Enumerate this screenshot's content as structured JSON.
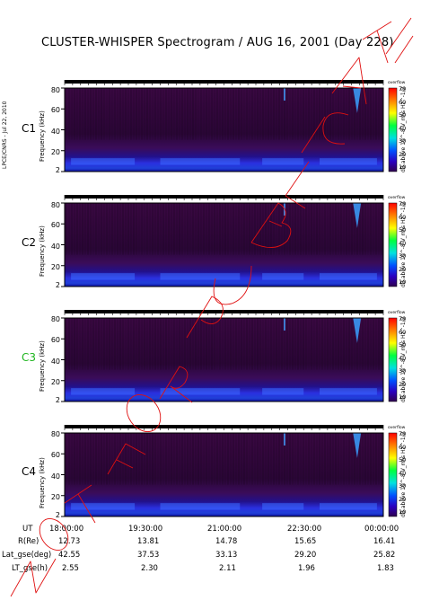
{
  "title": "CLUSTER-WHISPER Spectrogram / AUG 16, 2001 (Day 228)",
  "credit": "LPCE/CNRS - Jul 22, 2010",
  "chart_data": [
    {
      "type": "heatmap",
      "spacecraft": "C1",
      "label_color": "#000000",
      "ylabel": "Frequency (kHz)",
      "yticks": [
        "80",
        "60",
        "40",
        "20",
        "2"
      ],
      "colorbar": {
        "label": "dB above 10^-8 V_rms Hz^-1/2",
        "ticks": [
          "70",
          "60",
          "50",
          "40",
          "30",
          "20",
          "10"
        ],
        "top": "overflow"
      }
    },
    {
      "type": "heatmap",
      "spacecraft": "C2",
      "label_color": "#000000",
      "ylabel": "Frequency (kHz)",
      "yticks": [
        "80",
        "60",
        "40",
        "20",
        "2"
      ],
      "colorbar": {
        "label": "dB above 10^-8 V_rms Hz^-1/2",
        "ticks": [
          "70",
          "60",
          "50",
          "40",
          "30",
          "20",
          "10"
        ],
        "top": "overflow"
      }
    },
    {
      "type": "heatmap",
      "spacecraft": "C3",
      "label_color": "#1fb51f",
      "ylabel": "Frequency (kHz)",
      "yticks": [
        "80",
        "60",
        "40",
        "20",
        "2"
      ],
      "colorbar": {
        "label": "dB above 10^-8 V_rms Hz^-1/2",
        "ticks": [
          "70",
          "60",
          "50",
          "40",
          "30",
          "20",
          "10"
        ],
        "top": "overflow"
      }
    },
    {
      "type": "heatmap",
      "spacecraft": "C4",
      "label_color": "#000000",
      "ylabel": "Frequency (kHz)",
      "yticks": [
        "80",
        "60",
        "40",
        "20",
        "2"
      ],
      "colorbar": {
        "label": "dB above 10^-8 V_rms Hz^-1/2",
        "ticks": [
          "70",
          "60",
          "50",
          "40",
          "30",
          "20",
          "10"
        ],
        "top": "overflow"
      }
    }
  ],
  "ephemeris": {
    "rows": [
      {
        "label": "UT",
        "values": [
          "18:00:00",
          "19:30:00",
          "21:00:00",
          "22:30:00",
          "00:00:00"
        ]
      },
      {
        "label": "R(Re)",
        "values": [
          "12.73",
          "13.81",
          "14.78",
          "15.65",
          "16.41"
        ]
      },
      {
        "label": "Lat_gse(deg)",
        "values": [
          "42.55",
          "37.53",
          "33.13",
          "29.20",
          "25.82"
        ]
      },
      {
        "label": "LT_gse(h)",
        "values": [
          "2.55",
          "2.30",
          "2.11",
          "1.96",
          "1.83"
        ]
      }
    ]
  },
  "watermark": "NOT FOR PUBLICATION",
  "colors": {
    "background_dark": "#250530",
    "band_blue": "#2b2ae0",
    "colorbar": [
      "#ff0000",
      "#ffa000",
      "#ffff00",
      "#00ff00",
      "#00e0e0",
      "#0060ff",
      "#2000d0",
      "#300060"
    ]
  }
}
